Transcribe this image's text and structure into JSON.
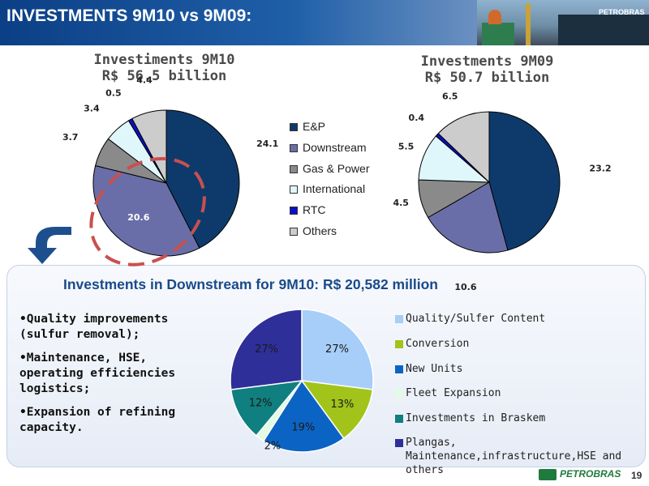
{
  "header": {
    "title": "INVESTMENTS 9M10 vs 9M09:",
    "photo_text": "PETROBRAS"
  },
  "chart_data": [
    {
      "type": "pie",
      "title": "Investiments  9M10\nR$ 56.5 billion",
      "categories": [
        "E&P",
        "Downstream",
        "Gas & Power",
        "International",
        "RTC",
        "Others"
      ],
      "values": [
        24.1,
        20.6,
        3.7,
        3.4,
        0.5,
        4.4
      ],
      "colors": [
        "#0e3a6b",
        "#6a6ea8",
        "#8a8a8a",
        "#dff7fb",
        "#0a10c8",
        "#cccccc"
      ],
      "legend": "right",
      "highlight": "Downstream"
    },
    {
      "type": "pie",
      "title": "Investments 9M09\nR$ 50.7 billion",
      "categories": [
        "E&P",
        "Downstream",
        "Gas & Power",
        "International",
        "RTC",
        "Others"
      ],
      "values": [
        23.2,
        10.6,
        4.5,
        5.5,
        0.4,
        6.5
      ],
      "colors": [
        "#0e3a6b",
        "#6a6ea8",
        "#8a8a8a",
        "#dff7fb",
        "#0a10c8",
        "#cccccc"
      ]
    },
    {
      "type": "pie",
      "title": "Investments in Downstream for 9M10: R$ 20,582 million",
      "categories": [
        "Quality/Sulfer Content",
        "Conversion",
        "New Units",
        "Fleet Expansion",
        "Investments in Braskem",
        "Plangas, Maintenance,infrastructure,HSE and others"
      ],
      "values": [
        27,
        13,
        19,
        2,
        12,
        27
      ],
      "labels": [
        "27%",
        "13%",
        "19%",
        "2%",
        "12%",
        "27%"
      ],
      "colors": [
        "#a6cef8",
        "#a2c31a",
        "#0b64c3",
        "#e2fbe2",
        "#107f7f",
        "#2e2f99"
      ],
      "legend": "right"
    }
  ],
  "bullets": [
    "•Quality improvements (sulfur removal);",
    "•Maintenance, HSE, operating efficiencies logistics;",
    "•Expansion of refining capacity."
  ],
  "footer": {
    "logo": "PETROBRAS",
    "page": "19"
  }
}
